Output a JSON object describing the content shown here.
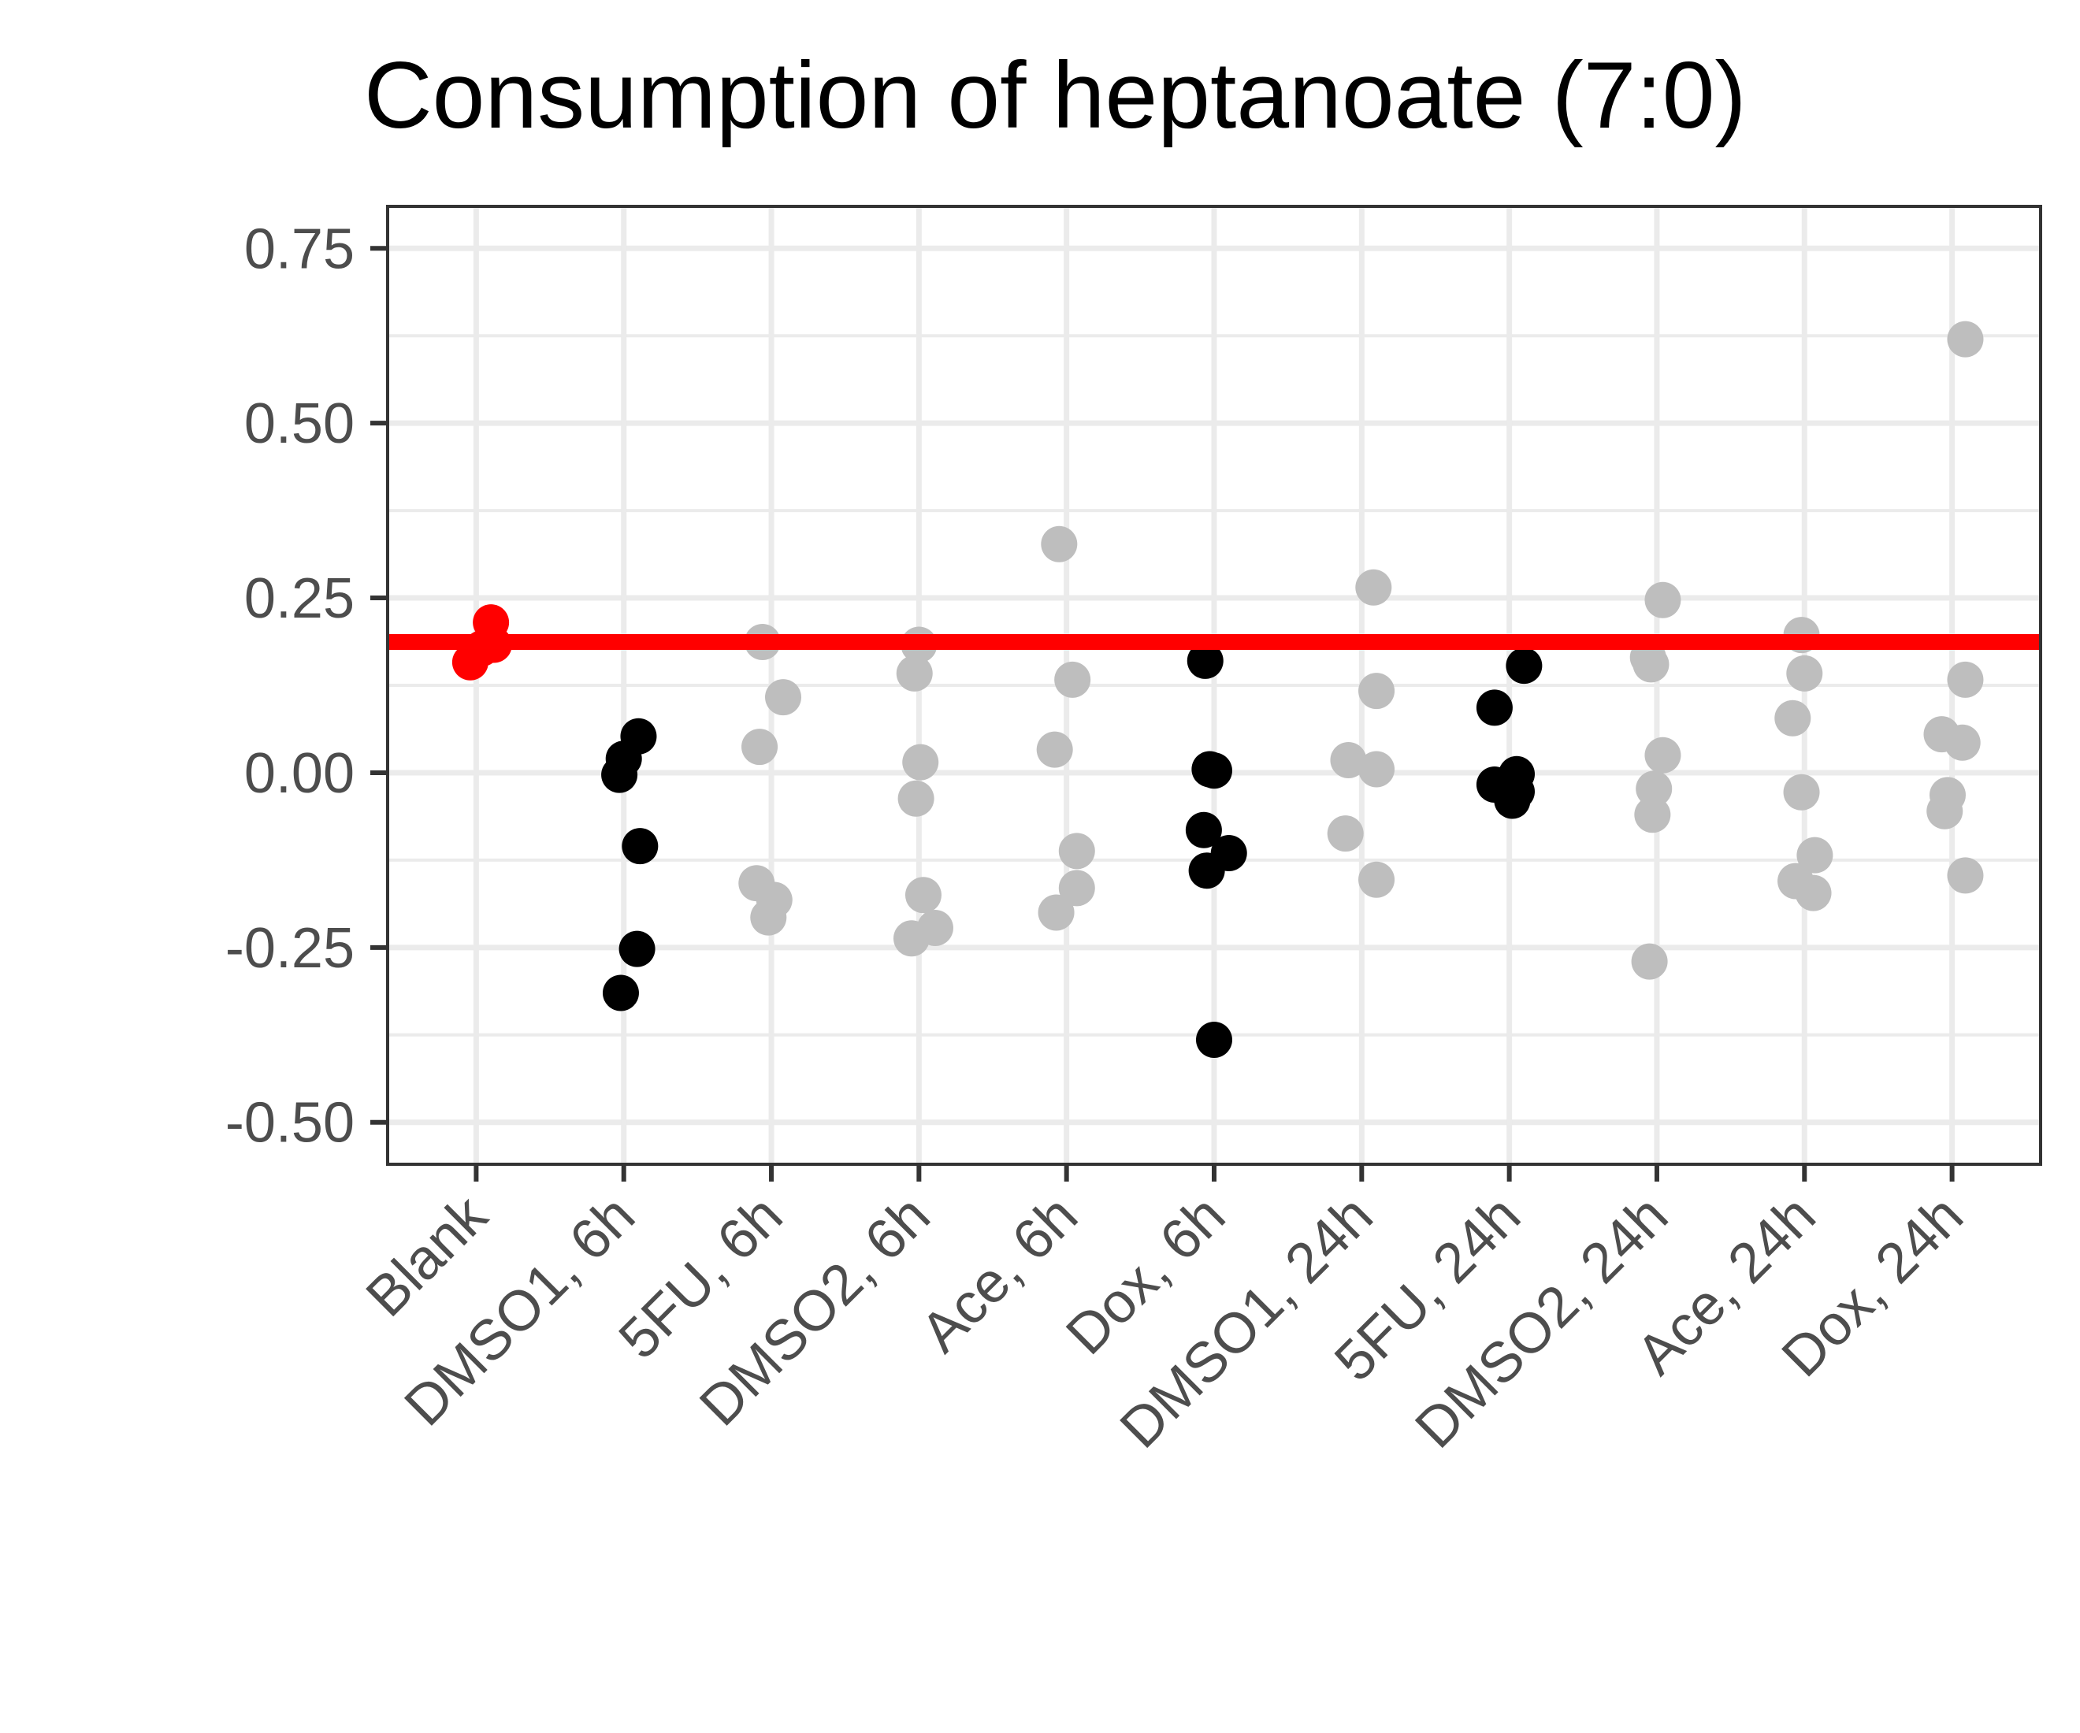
{
  "chart_data": {
    "type": "scatter",
    "title": "Consumption of heptanoate (7:0)",
    "xlabel": "",
    "ylabel": "",
    "categories": [
      "Blank",
      "DMSO1, 6h",
      "5FU, 6h",
      "DMSO2, 6h",
      "Ace, 6h",
      "Dox, 6h",
      "DMSO1, 24h",
      "5FU, 24h",
      "DMSO2, 24h",
      "Ace, 24h",
      "Dox, 24h"
    ],
    "ylim": [
      -0.56,
      0.81
    ],
    "yticks": [
      0.75,
      0.5,
      0.25,
      0.0,
      -0.25,
      -0.5
    ],
    "ytick_labels": [
      "0.75",
      "0.50",
      "0.25",
      "0.00",
      "-0.25",
      "-0.50"
    ],
    "grid": true,
    "reference_line": {
      "y": 0.187,
      "color": "#ff0000"
    },
    "colors": {
      "blank": "#ff0000",
      "highlight": "#000000",
      "other": "#bebebe",
      "grid": "#ebebeb",
      "axis": "#333333",
      "tick_text": "#4d4d4d"
    },
    "points": [
      {
        "category": "Blank",
        "x_offset": -0.04,
        "y": 0.158,
        "color": "#ff0000"
      },
      {
        "category": "Blank",
        "x_offset": 0.1,
        "y": 0.215,
        "color": "#ff0000"
      },
      {
        "category": "Blank",
        "x_offset": 0.12,
        "y": 0.183,
        "color": "#ff0000"
      },
      {
        "category": "Blank",
        "x_offset": 0.04,
        "y": 0.178,
        "color": "#ff0000"
      },
      {
        "category": "DMSO1, 6h",
        "x_offset": -0.03,
        "y": -0.003,
        "color": "#000000"
      },
      {
        "category": "DMSO1, 6h",
        "x_offset": 0.0,
        "y": 0.02,
        "color": "#000000"
      },
      {
        "category": "DMSO1, 6h",
        "x_offset": 0.1,
        "y": 0.052,
        "color": "#000000"
      },
      {
        "category": "DMSO1, 6h",
        "x_offset": 0.11,
        "y": -0.105,
        "color": "#000000"
      },
      {
        "category": "DMSO1, 6h",
        "x_offset": 0.09,
        "y": -0.252,
        "color": "#000000"
      },
      {
        "category": "DMSO1, 6h",
        "x_offset": -0.02,
        "y": -0.315,
        "color": "#000000"
      },
      {
        "category": "5FU, 6h",
        "x_offset": -0.06,
        "y": 0.187,
        "color": "#bebebe"
      },
      {
        "category": "5FU, 6h",
        "x_offset": 0.08,
        "y": 0.108,
        "color": "#bebebe"
      },
      {
        "category": "5FU, 6h",
        "x_offset": -0.08,
        "y": 0.037,
        "color": "#bebebe"
      },
      {
        "category": "5FU, 6h",
        "x_offset": -0.1,
        "y": -0.158,
        "color": "#bebebe"
      },
      {
        "category": "5FU, 6h",
        "x_offset": 0.02,
        "y": -0.182,
        "color": "#bebebe"
      },
      {
        "category": "5FU, 6h",
        "x_offset": -0.02,
        "y": -0.207,
        "color": "#bebebe"
      },
      {
        "category": "DMSO2, 6h",
        "x_offset": 0.0,
        "y": 0.183,
        "color": "#bebebe"
      },
      {
        "category": "DMSO2, 6h",
        "x_offset": -0.03,
        "y": 0.142,
        "color": "#bebebe"
      },
      {
        "category": "DMSO2, 6h",
        "x_offset": 0.01,
        "y": 0.015,
        "color": "#bebebe"
      },
      {
        "category": "DMSO2, 6h",
        "x_offset": -0.02,
        "y": -0.037,
        "color": "#bebebe"
      },
      {
        "category": "DMSO2, 6h",
        "x_offset": 0.03,
        "y": -0.175,
        "color": "#bebebe"
      },
      {
        "category": "DMSO2, 6h",
        "x_offset": 0.11,
        "y": -0.222,
        "color": "#bebebe"
      },
      {
        "category": "DMSO2, 6h",
        "x_offset": -0.05,
        "y": -0.237,
        "color": "#bebebe"
      },
      {
        "category": "Ace, 6h",
        "x_offset": -0.05,
        "y": 0.327,
        "color": "#bebebe"
      },
      {
        "category": "Ace, 6h",
        "x_offset": 0.04,
        "y": 0.133,
        "color": "#bebebe"
      },
      {
        "category": "Ace, 6h",
        "x_offset": -0.08,
        "y": 0.033,
        "color": "#bebebe"
      },
      {
        "category": "Ace, 6h",
        "x_offset": 0.07,
        "y": -0.112,
        "color": "#bebebe"
      },
      {
        "category": "Ace, 6h",
        "x_offset": 0.07,
        "y": -0.165,
        "color": "#bebebe"
      },
      {
        "category": "Ace, 6h",
        "x_offset": -0.07,
        "y": -0.2,
        "color": "#bebebe"
      },
      {
        "category": "Dox, 6h",
        "x_offset": -0.06,
        "y": 0.16,
        "color": "#000000"
      },
      {
        "category": "Dox, 6h",
        "x_offset": -0.03,
        "y": 0.005,
        "color": "#000000"
      },
      {
        "category": "Dox, 6h",
        "x_offset": 0.0,
        "y": 0.003,
        "color": "#000000"
      },
      {
        "category": "Dox, 6h",
        "x_offset": -0.07,
        "y": -0.082,
        "color": "#000000"
      },
      {
        "category": "Dox, 6h",
        "x_offset": 0.1,
        "y": -0.115,
        "color": "#000000"
      },
      {
        "category": "Dox, 6h",
        "x_offset": -0.05,
        "y": -0.14,
        "color": "#000000"
      },
      {
        "category": "Dox, 6h",
        "x_offset": 0.0,
        "y": -0.382,
        "color": "#000000"
      },
      {
        "category": "DMSO1, 24h",
        "x_offset": 0.08,
        "y": 0.265,
        "color": "#bebebe"
      },
      {
        "category": "DMSO1, 24h",
        "x_offset": 0.1,
        "y": 0.117,
        "color": "#bebebe"
      },
      {
        "category": "DMSO1, 24h",
        "x_offset": -0.09,
        "y": 0.018,
        "color": "#bebebe"
      },
      {
        "category": "DMSO1, 24h",
        "x_offset": 0.1,
        "y": 0.005,
        "color": "#bebebe"
      },
      {
        "category": "DMSO1, 24h",
        "x_offset": -0.11,
        "y": -0.087,
        "color": "#bebebe"
      },
      {
        "category": "DMSO1, 24h",
        "x_offset": 0.1,
        "y": -0.153,
        "color": "#bebebe"
      },
      {
        "category": "5FU, 24h",
        "x_offset": 0.1,
        "y": 0.153,
        "color": "#000000"
      },
      {
        "category": "5FU, 24h",
        "x_offset": -0.1,
        "y": 0.093,
        "color": "#000000"
      },
      {
        "category": "5FU, 24h",
        "x_offset": 0.05,
        "y": -0.002,
        "color": "#000000"
      },
      {
        "category": "5FU, 24h",
        "x_offset": -0.1,
        "y": -0.017,
        "color": "#000000"
      },
      {
        "category": "5FU, 24h",
        "x_offset": 0.05,
        "y": -0.027,
        "color": "#000000"
      },
      {
        "category": "5FU, 24h",
        "x_offset": 0.02,
        "y": -0.04,
        "color": "#000000"
      },
      {
        "category": "DMSO2, 24h",
        "x_offset": 0.04,
        "y": 0.247,
        "color": "#bebebe"
      },
      {
        "category": "DMSO2, 24h",
        "x_offset": -0.06,
        "y": 0.165,
        "color": "#bebebe"
      },
      {
        "category": "DMSO2, 24h",
        "x_offset": -0.04,
        "y": 0.155,
        "color": "#bebebe"
      },
      {
        "category": "DMSO2, 24h",
        "x_offset": 0.04,
        "y": 0.025,
        "color": "#bebebe"
      },
      {
        "category": "DMSO2, 24h",
        "x_offset": -0.02,
        "y": -0.023,
        "color": "#bebebe"
      },
      {
        "category": "DMSO2, 24h",
        "x_offset": -0.03,
        "y": -0.06,
        "color": "#bebebe"
      },
      {
        "category": "DMSO2, 24h",
        "x_offset": -0.05,
        "y": -0.27,
        "color": "#bebebe"
      },
      {
        "category": "Ace, 24h",
        "x_offset": -0.02,
        "y": 0.197,
        "color": "#bebebe"
      },
      {
        "category": "Ace, 24h",
        "x_offset": 0.0,
        "y": 0.142,
        "color": "#bebebe"
      },
      {
        "category": "Ace, 24h",
        "x_offset": -0.08,
        "y": 0.078,
        "color": "#bebebe"
      },
      {
        "category": "Ace, 24h",
        "x_offset": -0.02,
        "y": -0.028,
        "color": "#bebebe"
      },
      {
        "category": "Ace, 24h",
        "x_offset": 0.07,
        "y": -0.118,
        "color": "#bebebe"
      },
      {
        "category": "Ace, 24h",
        "x_offset": -0.06,
        "y": -0.155,
        "color": "#bebebe"
      },
      {
        "category": "Ace, 24h",
        "x_offset": 0.06,
        "y": -0.172,
        "color": "#bebebe"
      },
      {
        "category": "Dox, 24h",
        "x_offset": 0.09,
        "y": 0.62,
        "color": "#bebebe"
      },
      {
        "category": "Dox, 24h",
        "x_offset": 0.09,
        "y": 0.133,
        "color": "#bebebe"
      },
      {
        "category": "Dox, 24h",
        "x_offset": -0.07,
        "y": 0.055,
        "color": "#bebebe"
      },
      {
        "category": "Dox, 24h",
        "x_offset": 0.07,
        "y": 0.043,
        "color": "#bebebe"
      },
      {
        "category": "Dox, 24h",
        "x_offset": -0.03,
        "y": -0.032,
        "color": "#bebebe"
      },
      {
        "category": "Dox, 24h",
        "x_offset": -0.05,
        "y": -0.055,
        "color": "#bebebe"
      },
      {
        "category": "Dox, 24h",
        "x_offset": 0.09,
        "y": -0.147,
        "color": "#bebebe"
      }
    ]
  }
}
